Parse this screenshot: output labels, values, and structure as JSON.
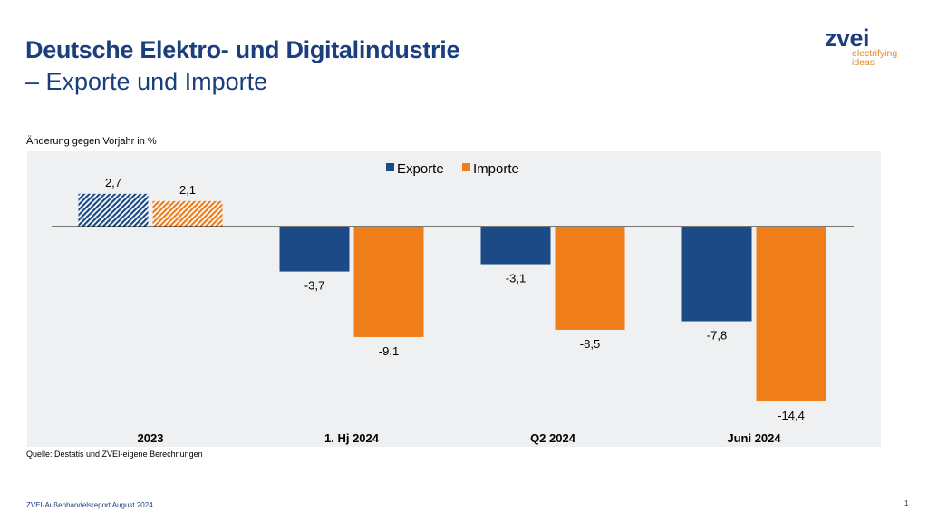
{
  "header": {
    "title": "Deutsche Elektro- und Digitalindustrie",
    "subtitle": "– Exporte und Importe"
  },
  "logo": {
    "name": "zvei",
    "tagline_1": "electrifying",
    "tagline_2": "ideas"
  },
  "chart_data": {
    "type": "bar",
    "ylabel": "Änderung gegen Vorjahr in %",
    "categories": [
      "2023",
      "1. Hj 2024",
      "Q2 2024",
      "Juni 2024"
    ],
    "series": [
      {
        "name": "Exporte",
        "color": "#1b4a87",
        "values": [
          2.7,
          -3.7,
          -3.1,
          -7.8
        ],
        "labels": [
          "2,7",
          "-3,7",
          "-3,1",
          "-7,8"
        ]
      },
      {
        "name": "Importe",
        "color": "#ee7d1a",
        "values": [
          2.1,
          -9.1,
          -8.5,
          -14.4
        ],
        "labels": [
          "2,1",
          "-9,1",
          "-8,5",
          "-14,4"
        ]
      }
    ],
    "hatched_categories": [
      "2023"
    ],
    "legend": "top-center",
    "background": "#eef0f1"
  },
  "source": "Quelle: Destatis und ZVEI-eigene Berechnungen",
  "footer": "ZVEI-Außenhandelsreport August 2024",
  "page_number": "1"
}
